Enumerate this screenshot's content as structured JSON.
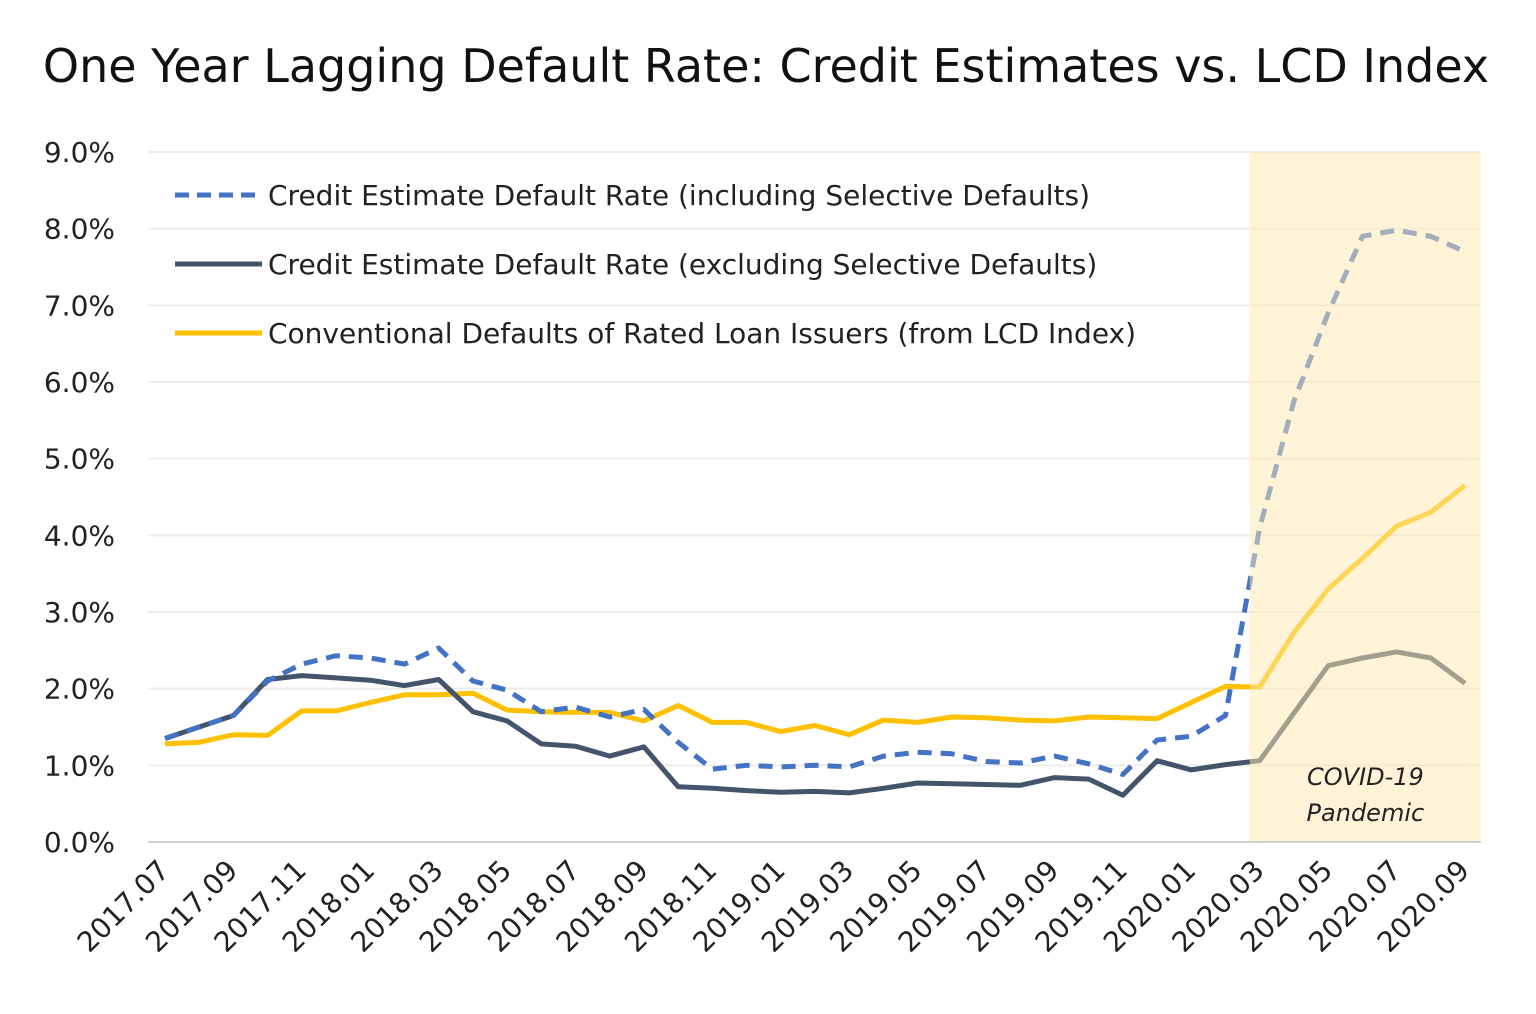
{
  "chart_data": {
    "type": "line",
    "title": "One Year Lagging Default Rate: Credit Estimates vs. LCD Index",
    "xlabel": "",
    "ylabel": "",
    "ylim": [
      0,
      9
    ],
    "y_ticks": [
      "0.0%",
      "1.0%",
      "2.0%",
      "3.0%",
      "4.0%",
      "5.0%",
      "6.0%",
      "7.0%",
      "8.0%",
      "9.0%"
    ],
    "grid": true,
    "legend_position": "top-left",
    "x": [
      "2017.07",
      "2017.08",
      "2017.09",
      "2017.10",
      "2017.11",
      "2017.12",
      "2018.01",
      "2018.02",
      "2018.03",
      "2018.04",
      "2018.05",
      "2018.06",
      "2018.07",
      "2018.08",
      "2018.09",
      "2018.10",
      "2018.11",
      "2018.12",
      "2019.01",
      "2019.02",
      "2019.03",
      "2019.04",
      "2019.05",
      "2019.06",
      "2019.07",
      "2019.08",
      "2019.09",
      "2019.10",
      "2019.11",
      "2019.12",
      "2020.01",
      "2020.02",
      "2020.03",
      "2020.04",
      "2020.05",
      "2020.06",
      "2020.07",
      "2020.08",
      "2020.09"
    ],
    "x_tick_labels": [
      "2017.07",
      "2017.09",
      "2017.11",
      "2018.01",
      "2018.03",
      "2018.05",
      "2018.07",
      "2018.09",
      "2018.11",
      "2019.01",
      "2019.03",
      "2019.05",
      "2019.07",
      "2019.09",
      "2019.11",
      "2020.01",
      "2020.03",
      "2020.05",
      "2020.07",
      "2020.09"
    ],
    "series": [
      {
        "name": "Credit Estimate Default Rate (including Selective Defaults)",
        "color": "#4472C4",
        "style": "dashed",
        "values": [
          1.35,
          1.5,
          1.65,
          2.1,
          2.32,
          2.43,
          2.4,
          2.32,
          2.53,
          2.1,
          1.98,
          1.7,
          1.76,
          1.63,
          1.73,
          1.3,
          0.95,
          1.0,
          0.98,
          1.0,
          0.98,
          1.12,
          1.17,
          1.15,
          1.05,
          1.03,
          1.12,
          1.02,
          0.88,
          1.33,
          1.38,
          1.65,
          4.1,
          5.75,
          6.9,
          7.9,
          7.98,
          7.9,
          7.7
        ]
      },
      {
        "name": "Credit Estimate Default Rate (excluding Selective Defaults)",
        "color": "#44546A",
        "style": "solid",
        "values": [
          1.35,
          1.5,
          1.65,
          2.12,
          2.17,
          2.14,
          2.11,
          2.04,
          2.12,
          1.7,
          1.58,
          1.28,
          1.25,
          1.12,
          1.24,
          0.72,
          0.7,
          0.67,
          0.65,
          0.66,
          0.64,
          0.7,
          0.77,
          0.76,
          0.75,
          0.74,
          0.84,
          0.82,
          0.61,
          1.06,
          0.94,
          1.01,
          1.06,
          1.68,
          2.3,
          2.4,
          2.48,
          2.4,
          2.07
        ]
      },
      {
        "name": "Conventional Defaults of Rated Loan Issuers (from LCD Index)",
        "color": "#FFC000",
        "style": "solid",
        "values": [
          1.28,
          1.3,
          1.4,
          1.39,
          1.71,
          1.71,
          1.82,
          1.92,
          1.92,
          1.94,
          1.72,
          1.7,
          1.69,
          1.69,
          1.58,
          1.78,
          1.56,
          1.56,
          1.44,
          1.52,
          1.4,
          1.59,
          1.56,
          1.63,
          1.62,
          1.59,
          1.58,
          1.63,
          1.62,
          1.61,
          1.82,
          2.03,
          2.02,
          2.73,
          3.3,
          3.7,
          4.12,
          4.3,
          4.65
        ]
      }
    ],
    "annotations": [
      {
        "label_line1": "COVID-19",
        "label_line2": "Pandemic",
        "shaded_from": "2020.03",
        "shaded_to": "2020.09",
        "color": "#FFF2CC"
      }
    ]
  }
}
